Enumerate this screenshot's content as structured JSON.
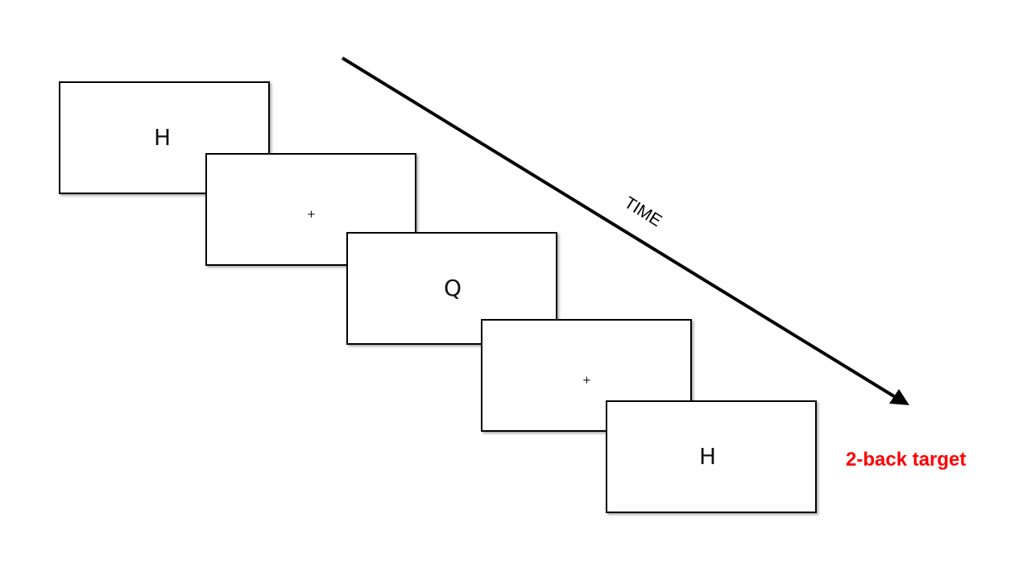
{
  "diagram": {
    "arrow_label": "TIME",
    "target_label": "2-back target",
    "target_label_color": "#ff0000",
    "stimuli": [
      {
        "content": "H",
        "kind": "letter"
      },
      {
        "content": "+",
        "kind": "fixation"
      },
      {
        "content": "Q",
        "kind": "letter"
      },
      {
        "content": "+",
        "kind": "fixation"
      },
      {
        "content": "H",
        "kind": "letter"
      }
    ]
  }
}
